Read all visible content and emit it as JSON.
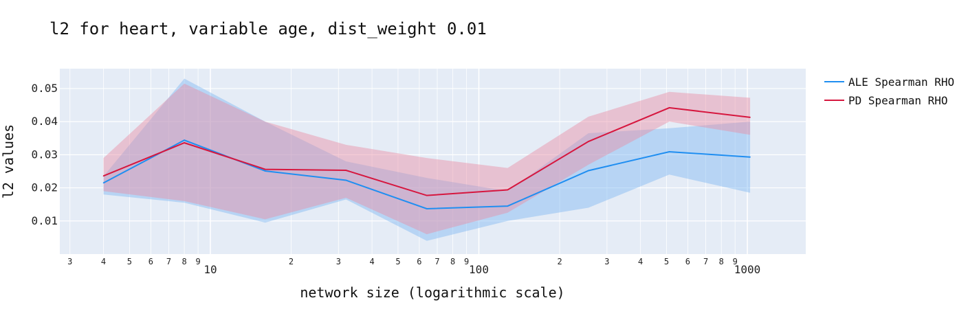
{
  "chart_data": {
    "type": "line",
    "title": "l2 for heart, variable age, dist_weight 0.01",
    "xlabel": "network size (logarithmic scale)",
    "ylabel": "l2 values",
    "xscale": "log",
    "xlim": [
      2.75,
      1650
    ],
    "ylim": [
      0,
      0.056
    ],
    "grid": true,
    "legend_position": "top-right",
    "yticks": [
      {
        "v": 0.01,
        "label": "0.01"
      },
      {
        "v": 0.02,
        "label": "0.02"
      },
      {
        "v": 0.03,
        "label": "0.03"
      },
      {
        "v": 0.04,
        "label": "0.04"
      },
      {
        "v": 0.05,
        "label": "0.05"
      }
    ],
    "xticks_minor": [
      {
        "v": 3,
        "label": "3"
      },
      {
        "v": 4,
        "label": "4"
      },
      {
        "v": 5,
        "label": "5"
      },
      {
        "v": 6,
        "label": "6"
      },
      {
        "v": 7,
        "label": "7"
      },
      {
        "v": 8,
        "label": "8"
      },
      {
        "v": 9,
        "label": "9"
      },
      {
        "v": 20,
        "label": "2"
      },
      {
        "v": 30,
        "label": "3"
      },
      {
        "v": 40,
        "label": "4"
      },
      {
        "v": 50,
        "label": "5"
      },
      {
        "v": 60,
        "label": "6"
      },
      {
        "v": 70,
        "label": "7"
      },
      {
        "v": 80,
        "label": "8"
      },
      {
        "v": 90,
        "label": "9"
      },
      {
        "v": 200,
        "label": "2"
      },
      {
        "v": 300,
        "label": "3"
      },
      {
        "v": 400,
        "label": "4"
      },
      {
        "v": 500,
        "label": "5"
      },
      {
        "v": 600,
        "label": "6"
      },
      {
        "v": 700,
        "label": "7"
      },
      {
        "v": 800,
        "label": "8"
      },
      {
        "v": 900,
        "label": "9"
      }
    ],
    "xticks_major": [
      {
        "v": 10,
        "label": "10"
      },
      {
        "v": 100,
        "label": "100"
      },
      {
        "v": 1000,
        "label": "1000"
      }
    ],
    "x": [
      4,
      8,
      16,
      32,
      64,
      128,
      256,
      512,
      1024
    ],
    "series": [
      {
        "name": "ALE Spearman RHO",
        "color": "#1f8ef1",
        "band_color": "#7eb9f2",
        "values": [
          0.0215,
          0.0344,
          0.0251,
          0.0223,
          0.0137,
          0.0145,
          0.0252,
          0.0309,
          0.0293
        ],
        "upper": [
          0.0235,
          0.053,
          0.04,
          0.028,
          0.023,
          0.019,
          0.0365,
          0.038,
          0.04
        ],
        "lower": [
          0.018,
          0.0155,
          0.0095,
          0.0165,
          0.004,
          0.01,
          0.014,
          0.024,
          0.0185
        ]
      },
      {
        "name": "PD Spearman RHO",
        "color": "#d6163e",
        "band_color": "#e88fa5",
        "values": [
          0.0236,
          0.0336,
          0.0256,
          0.0253,
          0.0177,
          0.0194,
          0.034,
          0.0442,
          0.0413
        ],
        "upper": [
          0.029,
          0.0515,
          0.04,
          0.033,
          0.029,
          0.026,
          0.0415,
          0.049,
          0.0472
        ],
        "lower": [
          0.019,
          0.016,
          0.0105,
          0.017,
          0.006,
          0.0125,
          0.027,
          0.04,
          0.036
        ]
      }
    ]
  }
}
